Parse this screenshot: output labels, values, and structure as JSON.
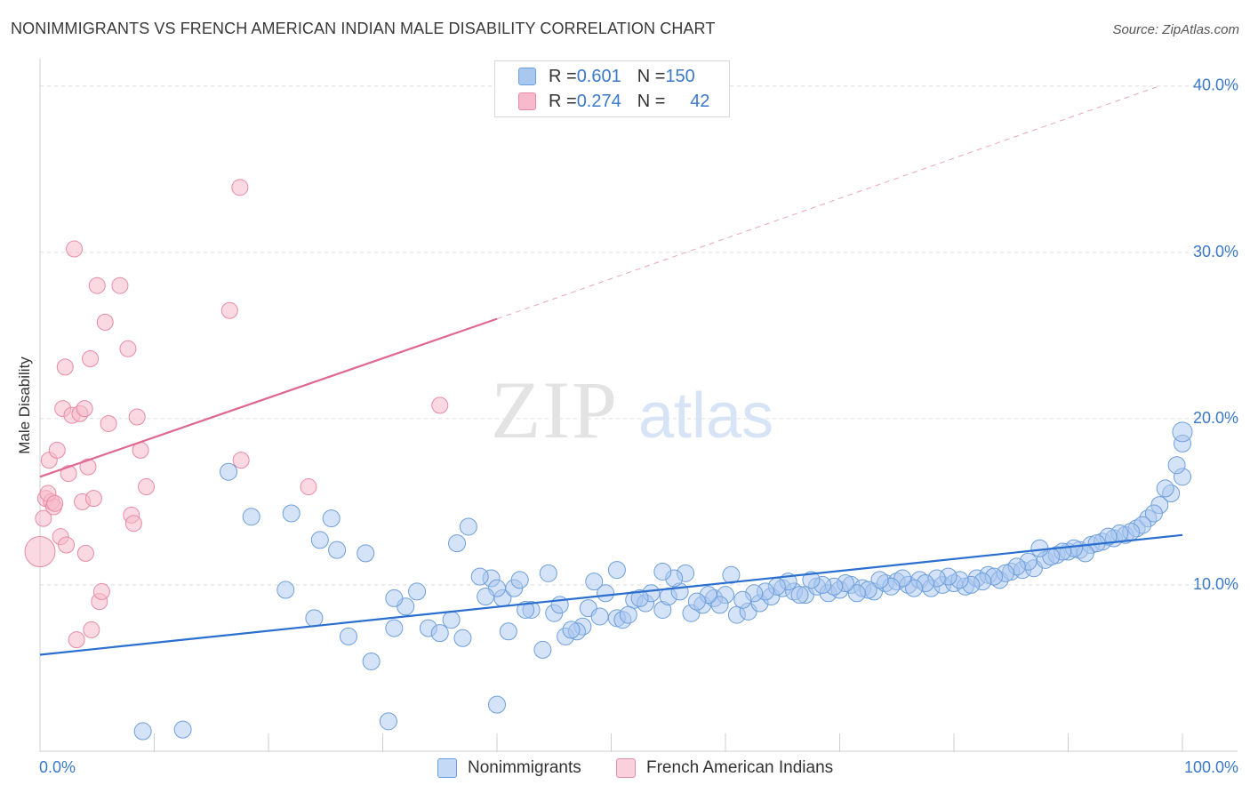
{
  "title": "NONIMMIGRANTS VS FRENCH AMERICAN INDIAN MALE DISABILITY CORRELATION CHART",
  "source": "Source: ZipAtlas.com",
  "watermark": {
    "zip": "ZIP",
    "atlas": "atlas"
  },
  "legend": {
    "nonimmigrants": {
      "r_label": "R = ",
      "r_value": "0.601",
      "n_label": "N = ",
      "n_value": "150"
    },
    "french": {
      "r_label": "R = ",
      "r_value": "0.274",
      "n_label": "N = ",
      "n_value": "42"
    }
  },
  "colors": {
    "blue_fill": "#a9c8f0",
    "blue_stroke": "#6e9fdc",
    "blue_line": "#2a6fd0",
    "pink_fill": "#f7b9cb",
    "pink_stroke": "#e88aa6",
    "pink_line": "#e06790",
    "grid": "#dedede",
    "axis_text": "#3a78c9"
  },
  "chart_data": {
    "type": "scatter",
    "title": "NONIMMIGRANTS VS FRENCH AMERICAN INDIAN MALE DISABILITY CORRELATION CHART",
    "xlabel": "",
    "ylabel": "Male Disability",
    "xlim": [
      0,
      100
    ],
    "ylim": [
      0,
      41
    ],
    "x_tick_labels": [
      "0.0%",
      "100.0%"
    ],
    "y_ticks": [
      10,
      20,
      30,
      40
    ],
    "y_tick_labels": [
      "10.0%",
      "20.0%",
      "30.0%",
      "40.0%"
    ],
    "grid": "dashed horizontal",
    "legend_placement": "bottom-center",
    "series": [
      {
        "name": "Nonimmigrants",
        "color": "#a9c8f0",
        "trend": {
          "x": [
            0,
            100
          ],
          "y": [
            5.8,
            13.0
          ]
        },
        "points": [
          [
            9,
            1.2
          ],
          [
            12.5,
            1.3
          ],
          [
            30.5,
            1.8
          ],
          [
            40,
            2.8
          ],
          [
            29,
            5.4
          ],
          [
            44,
            6.1
          ],
          [
            27,
            6.9
          ],
          [
            37,
            6.8
          ],
          [
            41,
            7.2
          ],
          [
            34,
            7.4
          ],
          [
            35,
            7.1
          ],
          [
            46,
            6.9
          ],
          [
            24,
            8.0
          ],
          [
            31,
            7.4
          ],
          [
            36,
            7.9
          ],
          [
            32,
            8.7
          ],
          [
            40.5,
            9.2
          ],
          [
            47.5,
            7.5
          ],
          [
            45,
            8.3
          ],
          [
            43,
            8.5
          ],
          [
            48,
            8.6
          ],
          [
            49,
            8.1
          ],
          [
            50.5,
            8.0
          ],
          [
            47,
            7.2
          ],
          [
            52,
            9.1
          ],
          [
            51,
            7.9
          ],
          [
            53,
            8.9
          ],
          [
            54.5,
            8.5
          ],
          [
            57,
            8.3
          ],
          [
            58,
            8.8
          ],
          [
            55,
            9.3
          ],
          [
            56,
            9.6
          ],
          [
            59,
            9.2
          ],
          [
            60,
            9.4
          ],
          [
            61,
            8.2
          ],
          [
            62,
            8.4
          ],
          [
            63,
            8.9
          ],
          [
            64,
            9.3
          ],
          [
            65,
            9.8
          ],
          [
            66,
            9.6
          ],
          [
            67,
            9.4
          ],
          [
            68,
            9.9
          ],
          [
            69,
            9.5
          ],
          [
            70,
            9.7
          ],
          [
            71,
            10.0
          ],
          [
            72,
            9.8
          ],
          [
            73,
            9.6
          ],
          [
            74,
            10.1
          ],
          [
            75,
            10.2
          ],
          [
            76,
            10.0
          ],
          [
            77,
            10.3
          ],
          [
            78,
            9.8
          ],
          [
            79,
            10.0
          ],
          [
            80,
            10.1
          ],
          [
            81,
            9.9
          ],
          [
            82,
            10.4
          ],
          [
            83,
            10.6
          ],
          [
            84,
            10.3
          ],
          [
            85,
            10.8
          ],
          [
            86,
            10.9
          ],
          [
            87,
            11.0
          ],
          [
            88,
            11.5
          ],
          [
            89,
            11.8
          ],
          [
            90,
            12.0
          ],
          [
            91,
            12.1
          ],
          [
            92,
            12.4
          ],
          [
            93,
            12.6
          ],
          [
            94,
            12.8
          ],
          [
            95,
            13.0
          ],
          [
            96,
            13.4
          ],
          [
            97,
            14.0
          ],
          [
            98,
            14.8
          ],
          [
            99,
            15.5
          ],
          [
            100,
            16.5
          ],
          [
            99.5,
            17.2
          ],
          [
            100,
            18.5
          ],
          [
            100,
            19.2
          ],
          [
            98.5,
            15.8
          ],
          [
            97.5,
            14.3
          ],
          [
            96.5,
            13.6
          ],
          [
            95.5,
            13.2
          ],
          [
            94.5,
            13.1
          ],
          [
            93.5,
            12.9
          ],
          [
            92.5,
            12.5
          ],
          [
            91.5,
            11.9
          ],
          [
            90.5,
            12.2
          ],
          [
            89.5,
            12.0
          ],
          [
            88.5,
            11.7
          ],
          [
            87.5,
            12.2
          ],
          [
            86.5,
            11.4
          ],
          [
            85.5,
            11.1
          ],
          [
            84.5,
            10.7
          ],
          [
            83.5,
            10.5
          ],
          [
            82.5,
            10.2
          ],
          [
            81.5,
            10.0
          ],
          [
            80.5,
            10.3
          ],
          [
            79.5,
            10.5
          ],
          [
            78.5,
            10.4
          ],
          [
            77.5,
            10.1
          ],
          [
            76.5,
            9.8
          ],
          [
            75.5,
            10.4
          ],
          [
            74.5,
            9.9
          ],
          [
            73.5,
            10.3
          ],
          [
            72.5,
            9.7
          ],
          [
            71.5,
            9.5
          ],
          [
            70.5,
            10.1
          ],
          [
            69.5,
            9.9
          ],
          [
            68.5,
            10.0
          ],
          [
            67.5,
            10.3
          ],
          [
            66.5,
            9.4
          ],
          [
            65.5,
            10.2
          ],
          [
            64.5,
            9.9
          ],
          [
            63.5,
            9.6
          ],
          [
            62.5,
            9.5
          ],
          [
            61.5,
            9.1
          ],
          [
            60.5,
            10.6
          ],
          [
            59.5,
            8.8
          ],
          [
            58.5,
            9.4
          ],
          [
            57.5,
            9.0
          ],
          [
            56.5,
            10.7
          ],
          [
            55.5,
            10.4
          ],
          [
            54.5,
            10.8
          ],
          [
            53.5,
            9.5
          ],
          [
            52.5,
            9.2
          ],
          [
            51.5,
            8.2
          ],
          [
            50.5,
            10.9
          ],
          [
            49.5,
            9.5
          ],
          [
            48.5,
            10.2
          ],
          [
            46.5,
            7.3
          ],
          [
            45.5,
            8.8
          ],
          [
            44.5,
            10.7
          ],
          [
            42.5,
            8.5
          ],
          [
            41.5,
            9.8
          ],
          [
            39.5,
            10.4
          ],
          [
            38.5,
            10.5
          ],
          [
            37.5,
            13.5
          ],
          [
            36.5,
            12.5
          ],
          [
            33,
            9.6
          ],
          [
            31,
            9.2
          ],
          [
            28.5,
            11.9
          ],
          [
            26,
            12.1
          ],
          [
            25.5,
            14.0
          ],
          [
            24.5,
            12.7
          ],
          [
            22,
            14.3
          ],
          [
            21.5,
            9.7
          ],
          [
            18.5,
            14.1
          ],
          [
            16.5,
            16.8
          ],
          [
            42,
            10.3
          ],
          [
            40,
            9.8
          ],
          [
            39,
            9.3
          ]
        ]
      },
      {
        "name": "French American Indians",
        "color": "#f7b9cb",
        "trend_solid": {
          "x": [
            0,
            40
          ],
          "y": [
            16.5,
            26.0
          ]
        },
        "trend_dashed": {
          "x": [
            40,
            98
          ],
          "y": [
            26.0,
            40.0
          ]
        },
        "points": [
          [
            0,
            12.0
          ],
          [
            0.3,
            14.0
          ],
          [
            0.5,
            15.2
          ],
          [
            0.8,
            17.5
          ],
          [
            1.0,
            15.0
          ],
          [
            1.2,
            14.7
          ],
          [
            1.5,
            18.1
          ],
          [
            1.8,
            12.9
          ],
          [
            2.0,
            20.6
          ],
          [
            2.2,
            23.1
          ],
          [
            2.3,
            12.4
          ],
          [
            2.5,
            16.7
          ],
          [
            2.8,
            20.2
          ],
          [
            3.0,
            30.2
          ],
          [
            3.2,
            6.7
          ],
          [
            3.5,
            20.3
          ],
          [
            3.7,
            15.0
          ],
          [
            3.9,
            20.6
          ],
          [
            4.0,
            11.9
          ],
          [
            4.2,
            17.1
          ],
          [
            4.4,
            23.6
          ],
          [
            4.5,
            7.3
          ],
          [
            4.7,
            15.2
          ],
          [
            5.0,
            28.0
          ],
          [
            5.2,
            9.0
          ],
          [
            5.4,
            9.6
          ],
          [
            5.7,
            25.8
          ],
          [
            6.0,
            19.7
          ],
          [
            7.0,
            28.0
          ],
          [
            7.7,
            24.2
          ],
          [
            8.0,
            14.2
          ],
          [
            8.2,
            13.7
          ],
          [
            8.5,
            20.1
          ],
          [
            8.8,
            18.1
          ],
          [
            9.3,
            15.9
          ],
          [
            16.6,
            26.5
          ],
          [
            17.5,
            33.9
          ],
          [
            17.6,
            17.5
          ],
          [
            23.5,
            15.9
          ],
          [
            35.0,
            20.8
          ],
          [
            0.7,
            15.5
          ],
          [
            1.3,
            14.9
          ]
        ]
      }
    ]
  },
  "bottom_legend": {
    "nonimmigrants": "Nonimmigrants",
    "french": "French American Indians"
  }
}
